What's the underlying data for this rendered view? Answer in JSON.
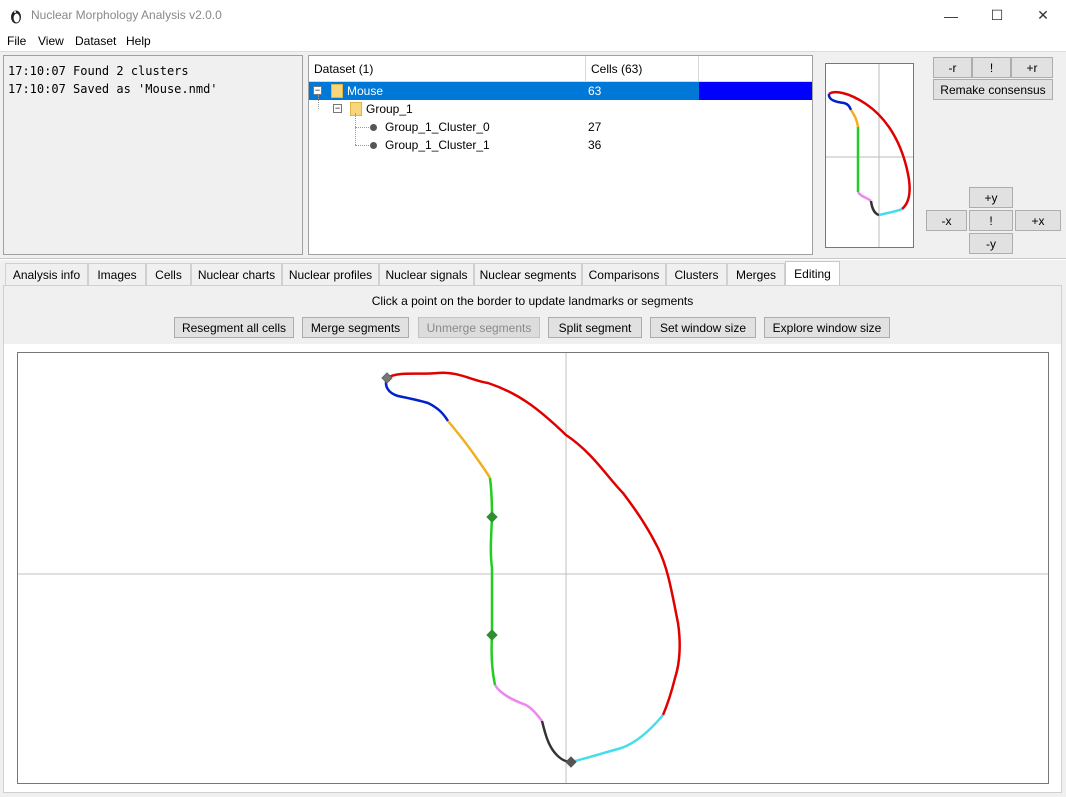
{
  "window": {
    "title": "Nuclear Morphology Analysis v2.0.0",
    "controls": {
      "minimize": "—",
      "maximize": "☐",
      "close": "✕"
    }
  },
  "menu": [
    "File",
    "View",
    "Dataset",
    "Help"
  ],
  "log": {
    "lines": [
      "17:10:07 Found 2 clusters",
      "17:10:07 Saved as 'Mouse.nmd'"
    ]
  },
  "tree": {
    "columns": [
      "Dataset (1)",
      "Cells (63)"
    ],
    "rows": [
      {
        "name": "Mouse",
        "count": "63",
        "selected": true,
        "expander": "−"
      },
      {
        "name": "Group_1",
        "count": "",
        "expander": "−"
      },
      {
        "name": "Group_1_Cluster_0",
        "count": "27"
      },
      {
        "name": "Group_1_Cluster_1",
        "count": "36"
      }
    ]
  },
  "consensus_controls": {
    "rotate_minus": "-r",
    "reset_rotation": "!",
    "rotate_plus": "+r",
    "remake": "Remake consensus",
    "up": "+y",
    "left": "-x",
    "reset_offset": "!",
    "right": "+x",
    "down": "-y"
  },
  "tabs": [
    "Analysis info",
    "Images",
    "Cells",
    "Nuclear charts",
    "Nuclear profiles",
    "Nuclear signals",
    "Nuclear segments",
    "Comparisons",
    "Clusters",
    "Merges",
    "Editing"
  ],
  "active_tab": "Editing",
  "editing": {
    "instruction": "Click a point on the border to update landmarks or segments",
    "buttons": {
      "resegment": "Resegment all cells",
      "merge": "Merge segments",
      "unmerge": "Unmerge segments",
      "split": "Split segment",
      "set_window": "Set window size",
      "explore_window": "Explore window size"
    }
  },
  "segment_colors": {
    "red": "#e00000",
    "blue": "#0022cc",
    "orange": "#f0b020",
    "green": "#22cc22",
    "pink": "#ee88ee",
    "black": "#333333",
    "cyan": "#44ddee"
  },
  "accent_colors": {
    "selection": "#0078d7",
    "highlight": "#0000ff"
  }
}
